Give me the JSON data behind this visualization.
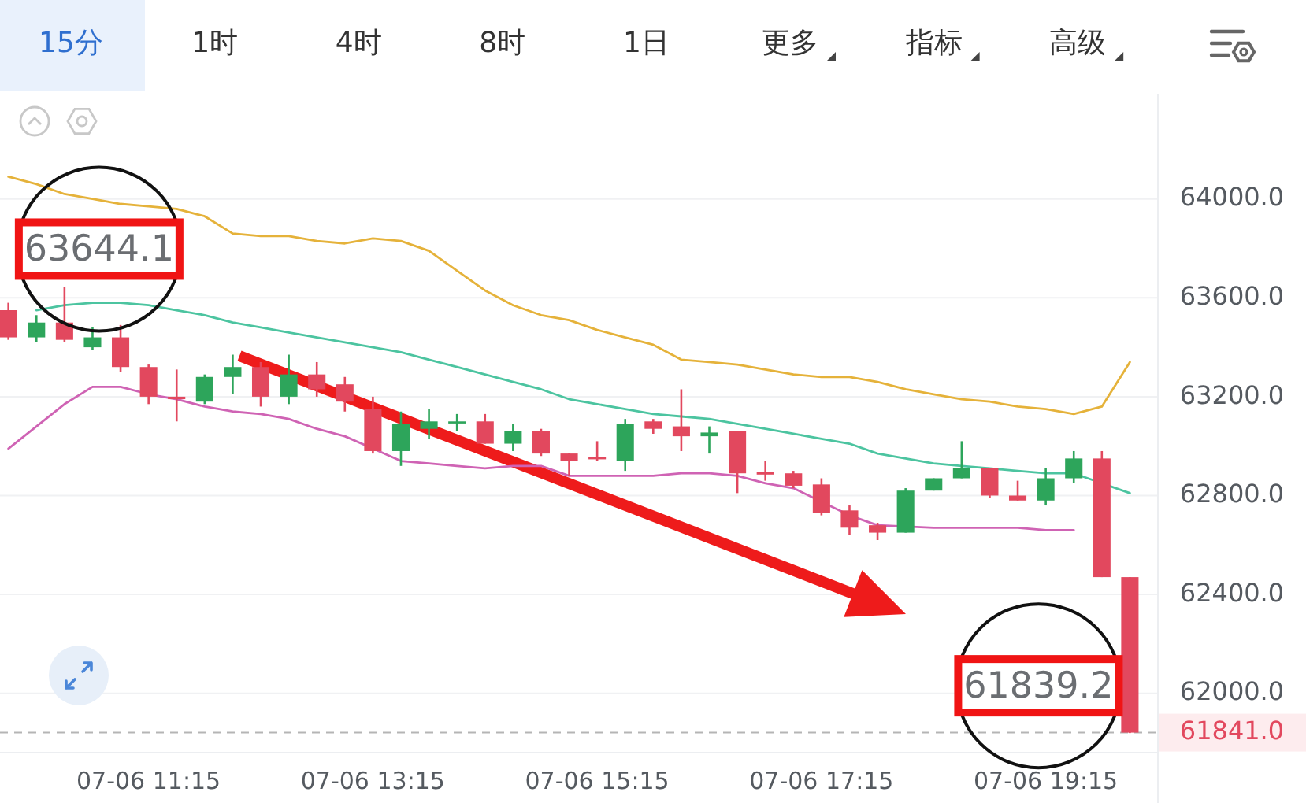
{
  "chart_data": {
    "type": "candlestick",
    "categories": [
      null,
      null,
      null,
      null,
      null,
      "07-06 11:15",
      null,
      null,
      null,
      null,
      null,
      null,
      null,
      "07-06 13:15",
      null,
      null,
      null,
      null,
      null,
      null,
      null,
      "07-06 15:15",
      null,
      null,
      null,
      null,
      null,
      null,
      null,
      "07-06 17:15",
      null,
      null,
      null,
      null,
      null,
      null,
      null,
      "07-06 19:15",
      null,
      null,
      null
    ],
    "ohlc": [
      [
        63550,
        63580,
        63430,
        63440
      ],
      [
        63440,
        63530,
        63420,
        63500
      ],
      [
        63500,
        63644.1,
        63420,
        63430
      ],
      [
        63400,
        63480,
        63390,
        63440
      ],
      [
        63440,
        63490,
        63300,
        63320
      ],
      [
        63320,
        63330,
        63170,
        63200
      ],
      [
        63200,
        63310,
        63100,
        63190
      ],
      [
        63180,
        63290,
        63170,
        63280
      ],
      [
        63280,
        63370,
        63210,
        63320
      ],
      [
        63320,
        63340,
        63160,
        63200
      ],
      [
        63200,
        63370,
        63170,
        63290
      ],
      [
        63290,
        63340,
        63200,
        63230
      ],
      [
        63250,
        63280,
        63140,
        63180
      ],
      [
        63150,
        63200,
        62970,
        62980
      ],
      [
        62980,
        63140,
        62920,
        63090
      ],
      [
        63070,
        63150,
        63030,
        63100
      ],
      [
        63095,
        63130,
        63060,
        63100
      ],
      [
        63100,
        63130,
        63010,
        63010
      ],
      [
        63010,
        63090,
        62980,
        63060
      ],
      [
        63060,
        63070,
        62960,
        62970
      ],
      [
        62970,
        62970,
        62880,
        62940
      ],
      [
        62955,
        63020,
        62940,
        62950
      ],
      [
        62940,
        63110,
        62900,
        63090
      ],
      [
        63100,
        63110,
        63050,
        63070
      ],
      [
        63080,
        63230,
        62980,
        63040
      ],
      [
        63040,
        63080,
        62970,
        63055
      ],
      [
        63060,
        63060,
        62810,
        62890
      ],
      [
        62895,
        62940,
        62860,
        62885
      ],
      [
        62890,
        62900,
        62830,
        62840
      ],
      [
        62845,
        62870,
        62720,
        62730
      ],
      [
        62740,
        62760,
        62640,
        62670
      ],
      [
        62680,
        62690,
        62620,
        62650
      ],
      [
        62650,
        62830,
        62650,
        62820
      ],
      [
        62820,
        62870,
        62820,
        62870
      ],
      [
        62870,
        63020,
        62870,
        62910
      ],
      [
        62910,
        62910,
        62790,
        62800
      ],
      [
        62800,
        62860,
        62780,
        62780
      ],
      [
        62780,
        62910,
        62760,
        62870
      ],
      [
        62870,
        62980,
        62850,
        62950
      ],
      [
        62950,
        62980,
        62470,
        62470
      ],
      [
        62470,
        62470,
        61839.2,
        61841.0
      ]
    ],
    "colors": [
      "#e2485e",
      "#2da55b",
      "#e2485e",
      "#2da55b",
      "#e2485e",
      "#e2485e",
      "#e2485e",
      "#2da55b",
      "#2da55b",
      "#e2485e",
      "#2da55b",
      "#e2485e",
      "#e2485e",
      "#e2485e",
      "#2da55b",
      "#2da55b",
      "#2da55b",
      "#e2485e",
      "#2da55b",
      "#e2485e",
      "#e2485e",
      "#e2485e",
      "#2da55b",
      "#e2485e",
      "#e2485e",
      "#2da55b",
      "#e2485e",
      "#e2485e",
      "#e2485e",
      "#e2485e",
      "#e2485e",
      "#e2485e",
      "#2da55b",
      "#2da55b",
      "#2da55b",
      "#e2485e",
      "#e2485e",
      "#2da55b",
      "#2da55b",
      "#e2485e",
      "#e2485e"
    ],
    "series": [
      {
        "type": "line",
        "color": "#e5b23a",
        "values": [
          64090,
          64060,
          64020,
          64000,
          63980,
          63970,
          63960,
          63930,
          63860,
          63850,
          63850,
          63830,
          63820,
          63840,
          63830,
          63790,
          63710,
          63630,
          63570,
          63530,
          63510,
          63470,
          63440,
          63410,
          63350,
          63340,
          63330,
          63310,
          63290,
          63280,
          63280,
          63260,
          63230,
          63210,
          63190,
          63180,
          63160,
          63150,
          63130,
          63160,
          63340
        ]
      },
      {
        "type": "line",
        "color": "#4cc4a0",
        "values": [
          null,
          63550,
          63570,
          63580,
          63580,
          63570,
          63550,
          63530,
          63500,
          63480,
          63460,
          63440,
          63420,
          63400,
          63380,
          63350,
          63320,
          63290,
          63260,
          63230,
          63190,
          63170,
          63150,
          63130,
          63120,
          63110,
          63090,
          63070,
          63050,
          63030,
          63010,
          62970,
          62950,
          62930,
          62920,
          62910,
          62900,
          62890,
          62890,
          null,
          62810
        ]
      },
      {
        "type": "line",
        "color": "#cf63b4",
        "values": [
          62990,
          63080,
          63170,
          63240,
          63240,
          63210,
          63190,
          63160,
          63140,
          63130,
          63110,
          63070,
          63040,
          62990,
          62940,
          62930,
          62920,
          62910,
          62920,
          62920,
          62880,
          62880,
          62880,
          62880,
          62890,
          62890,
          62880,
          62850,
          62830,
          null,
          62720,
          62680,
          null,
          62670,
          62670,
          62670,
          62670,
          62660,
          62660,
          null,
          null
        ]
      }
    ],
    "ylim": [
      61760,
      64410
    ],
    "yticks": [
      {
        "value": 62000,
        "label": "62000.0"
      },
      {
        "value": 62400,
        "label": "62400.0"
      },
      {
        "value": 62800,
        "label": "62800.0"
      },
      {
        "value": 63200,
        "label": "63200.0"
      },
      {
        "value": 63600,
        "label": "63600.0"
      },
      {
        "value": 64000,
        "label": "64000.0"
      }
    ],
    "grid": "y",
    "ref_lines": [
      {
        "axis": "y",
        "value": 61841.0,
        "label": "61841.0",
        "line_style": "dashed"
      }
    ],
    "annotations": [
      "15分",
      "1时",
      "4时",
      "8时",
      "1日",
      "更多",
      "指标",
      "高级",
      "63644.1",
      "61839.2"
    ]
  }
}
